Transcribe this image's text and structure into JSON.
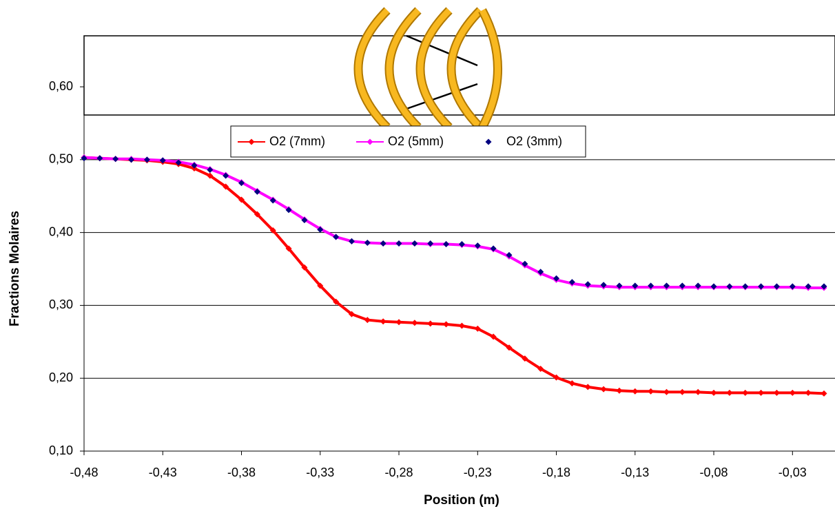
{
  "chart_data": {
    "type": "line",
    "x_label": "Position (m)",
    "y_label": "Fractions Molaires",
    "x": [
      -0.48,
      -0.47,
      -0.46,
      -0.45,
      -0.44,
      -0.43,
      -0.42,
      -0.41,
      -0.4,
      -0.39,
      -0.38,
      -0.37,
      -0.36,
      -0.35,
      -0.34,
      -0.33,
      -0.32,
      -0.31,
      -0.3,
      -0.29,
      -0.28,
      -0.27,
      -0.26,
      -0.25,
      -0.24,
      -0.23,
      -0.22,
      -0.21,
      -0.2,
      -0.19,
      -0.18,
      -0.17,
      -0.16,
      -0.15,
      -0.14,
      -0.13,
      -0.12,
      -0.11,
      -0.1,
      -0.09,
      -0.08,
      -0.07,
      -0.06,
      -0.05,
      -0.04,
      -0.03,
      -0.02,
      -0.01
    ],
    "series": [
      {
        "name": "O2 (7mm)",
        "color": "#ff0000",
        "line": true,
        "values": [
          0.503,
          0.502,
          0.501,
          0.5,
          0.499,
          0.497,
          0.494,
          0.488,
          0.478,
          0.463,
          0.445,
          0.425,
          0.403,
          0.378,
          0.352,
          0.327,
          0.305,
          0.288,
          0.28,
          0.278,
          0.277,
          0.276,
          0.275,
          0.274,
          0.272,
          0.268,
          0.257,
          0.242,
          0.227,
          0.213,
          0.201,
          0.193,
          0.188,
          0.185,
          0.183,
          0.182,
          0.182,
          0.181,
          0.181,
          0.181,
          0.18,
          0.18,
          0.18,
          0.18,
          0.18,
          0.18,
          0.18,
          0.179
        ]
      },
      {
        "name": "O2 (5mm)",
        "color": "#ff00ff",
        "line": true,
        "values": [
          0.503,
          0.502,
          0.501,
          0.501,
          0.5,
          0.499,
          0.497,
          0.493,
          0.487,
          0.479,
          0.469,
          0.457,
          0.445,
          0.432,
          0.418,
          0.405,
          0.394,
          0.388,
          0.386,
          0.385,
          0.385,
          0.385,
          0.384,
          0.384,
          0.383,
          0.381,
          0.377,
          0.367,
          0.355,
          0.344,
          0.335,
          0.33,
          0.327,
          0.326,
          0.325,
          0.325,
          0.325,
          0.325,
          0.325,
          0.325,
          0.325,
          0.325,
          0.325,
          0.325,
          0.325,
          0.325,
          0.324,
          0.324
        ]
      },
      {
        "name": "O2 (3mm)",
        "color": "#000080",
        "line": false,
        "values": [
          0.502,
          0.502,
          0.501,
          0.5,
          0.5,
          0.499,
          0.496,
          0.492,
          0.486,
          0.478,
          0.468,
          0.456,
          0.444,
          0.431,
          0.417,
          0.404,
          0.394,
          0.388,
          0.386,
          0.385,
          0.385,
          0.385,
          0.385,
          0.384,
          0.384,
          0.382,
          0.378,
          0.369,
          0.357,
          0.346,
          0.337,
          0.332,
          0.329,
          0.328,
          0.327,
          0.327,
          0.327,
          0.327,
          0.327,
          0.327,
          0.326,
          0.326,
          0.326,
          0.326,
          0.326,
          0.326,
          0.326,
          0.326
        ]
      }
    ],
    "xlim": [
      -0.48,
      -0.003
    ],
    "ylim": [
      0.1,
      0.67
    ],
    "xticks": [
      {
        "value": -0.48,
        "label": "-0,48"
      },
      {
        "value": -0.43,
        "label": "-0,43"
      },
      {
        "value": -0.38,
        "label": "-0,38"
      },
      {
        "value": -0.33,
        "label": "-0,33"
      },
      {
        "value": -0.28,
        "label": "-0,28"
      },
      {
        "value": -0.23,
        "label": "-0,23"
      },
      {
        "value": -0.18,
        "label": "-0,18"
      },
      {
        "value": -0.13,
        "label": "-0,13"
      },
      {
        "value": -0.08,
        "label": "-0,08"
      },
      {
        "value": -0.03,
        "label": "-0,03"
      }
    ],
    "yticks": [
      {
        "value": 0.1,
        "label": "0,10"
      },
      {
        "value": 0.2,
        "label": "0,20"
      },
      {
        "value": 0.3,
        "label": "0,30"
      },
      {
        "value": 0.4,
        "label": "0,40"
      },
      {
        "value": 0.5,
        "label": "0,50"
      },
      {
        "value": 0.6,
        "label": "0,60"
      }
    ],
    "grid": true
  }
}
